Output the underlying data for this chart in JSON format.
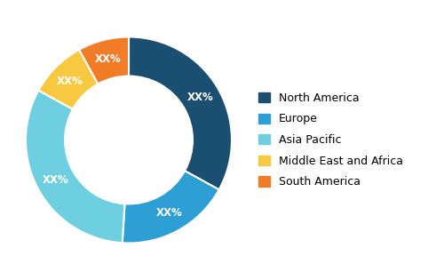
{
  "labels": [
    "North America",
    "Europe",
    "Asia Pacific",
    "Middle East and Africa",
    "South America"
  ],
  "values": [
    33,
    18,
    32,
    9,
    8
  ],
  "colors": [
    "#1b4f72",
    "#2e9fd4",
    "#6dcfe0",
    "#f8c840",
    "#f07c28"
  ],
  "label_texts": [
    "XX%",
    "XX%",
    "XX%",
    "XX%",
    "XX%"
  ],
  "label_color": "white",
  "label_fontsize": 8.5,
  "donut_width": 0.38,
  "start_angle": 90,
  "bg_color": "#ffffff",
  "legend_fontsize": 9,
  "figsize": [
    5.0,
    3.15
  ],
  "dpi": 100
}
